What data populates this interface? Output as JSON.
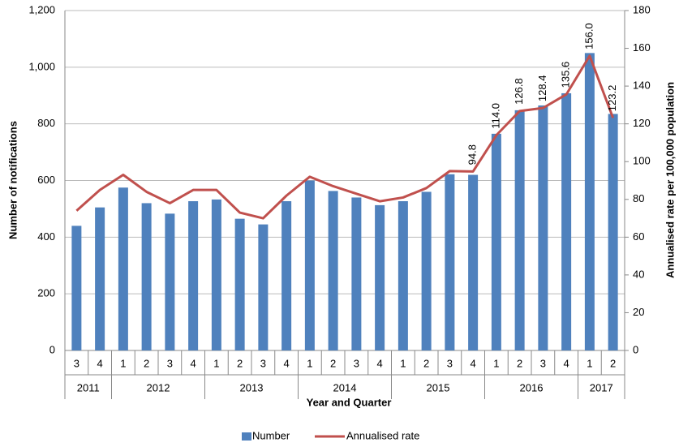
{
  "chart_data": {
    "type": "bar_line",
    "xlabel": "Year and Quarter",
    "ylabel": "Number of notifications",
    "y2label": "Annualised rate per 100,000 population",
    "categories": [
      "3",
      "4",
      "1",
      "2",
      "3",
      "4",
      "1",
      "2",
      "3",
      "4",
      "1",
      "2",
      "3",
      "4",
      "1",
      "2",
      "3",
      "4",
      "1",
      "2",
      "3",
      "4",
      "1",
      "2"
    ],
    "groups": [
      {
        "label": "2011",
        "count": 2
      },
      {
        "label": "2012",
        "count": 4
      },
      {
        "label": "2013",
        "count": 4
      },
      {
        "label": "2014",
        "count": 4
      },
      {
        "label": "2015",
        "count": 4
      },
      {
        "label": "2016",
        "count": 4
      },
      {
        "label": "2017",
        "count": 2
      }
    ],
    "series": [
      {
        "name": "Number",
        "type": "bar",
        "color": "#4f81bd",
        "values": [
          440,
          505,
          575,
          520,
          483,
          527,
          533,
          465,
          445,
          527,
          600,
          563,
          540,
          513,
          527,
          560,
          622,
          620,
          765,
          848,
          865,
          908,
          1050,
          835
        ]
      },
      {
        "name": "Annualised rate",
        "type": "line",
        "axis": "y2",
        "color": "#c0504d",
        "values": [
          74,
          85,
          93,
          84,
          78,
          85,
          85,
          73,
          70,
          82,
          92,
          87,
          83,
          79,
          81,
          86,
          95,
          94.8,
          114.0,
          126.8,
          128.4,
          135.6,
          156.0,
          123.2
        ],
        "value_labels": [
          null,
          null,
          null,
          null,
          null,
          null,
          null,
          null,
          null,
          null,
          null,
          null,
          null,
          null,
          null,
          null,
          null,
          "94.8",
          "114.0",
          "126.8",
          "128.4",
          "135.6",
          "156.0",
          "123.2"
        ]
      }
    ],
    "ylim": [
      0,
      1200
    ],
    "yticks": [
      0,
      200,
      400,
      600,
      800,
      {
        "value": 1000,
        "label": "1,000"
      },
      {
        "value": 1200,
        "label": "1,200"
      }
    ],
    "y2lim": [
      0,
      180
    ],
    "y2ticks": [
      0,
      20,
      40,
      60,
      80,
      100,
      120,
      140,
      160,
      180
    ],
    "grid": true,
    "legend": "bottom"
  }
}
